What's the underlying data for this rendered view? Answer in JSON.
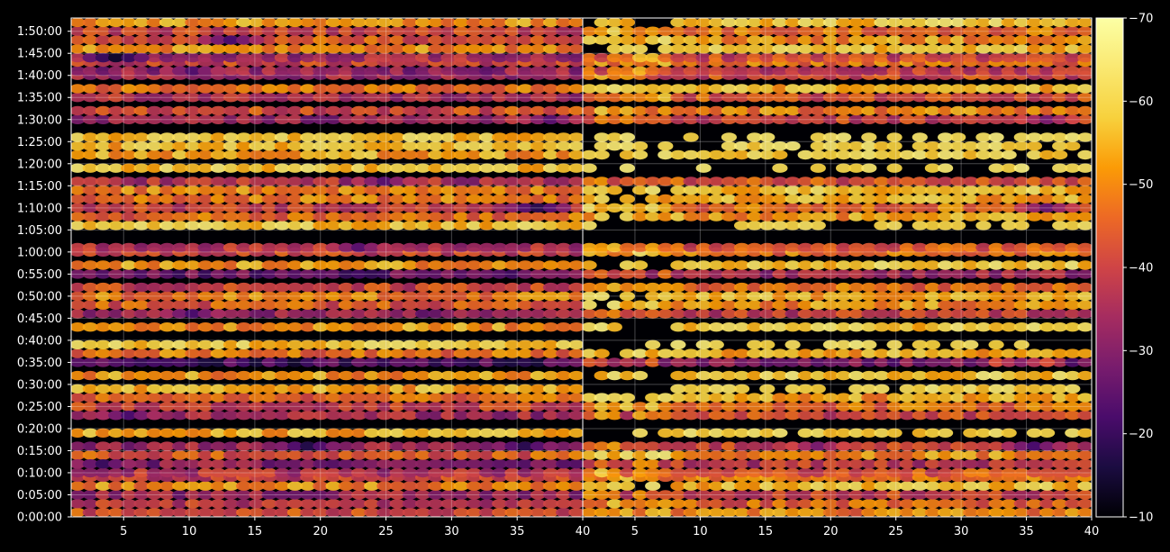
{
  "chart_data": {
    "type": "heatmap",
    "colormap": "inferno",
    "background": "#000000",
    "grid": true,
    "panels": [
      {
        "name": "left",
        "x_range": [
          1,
          40
        ],
        "x_ticks": [
          5,
          10,
          15,
          20,
          25,
          30,
          35,
          40
        ],
        "x_tick_labels": [
          "5",
          "10",
          "15",
          "20",
          "25",
          "30",
          "35",
          "40"
        ]
      },
      {
        "name": "right",
        "x_range": [
          1,
          40
        ],
        "x_ticks": [
          5,
          10,
          15,
          20,
          25,
          30,
          35,
          40
        ],
        "x_tick_labels": [
          "5",
          "10",
          "15",
          "20",
          "25",
          "30",
          "35",
          "40"
        ]
      }
    ],
    "y_axis": {
      "unit": "h:mm:ss",
      "range_minutes": [
        0,
        113
      ],
      "ticks_minutes": [
        0,
        5,
        10,
        15,
        20,
        25,
        30,
        35,
        40,
        45,
        50,
        55,
        60,
        65,
        70,
        75,
        80,
        85,
        90,
        95,
        100,
        105,
        110
      ],
      "tick_labels": [
        "0:00:00",
        "0:05:00",
        "0:10:00",
        "0:15:00",
        "0:20:00",
        "0:25:00",
        "0:30:00",
        "0:35:00",
        "0:40:00",
        "0:45:00",
        "0:50:00",
        "0:55:00",
        "1:00:00",
        "1:05:00",
        "1:10:00",
        "1:15:00",
        "1:20:00",
        "1:25:00",
        "1:30:00",
        "1:35:00",
        "1:40:00",
        "1:45:00",
        "1:50:00"
      ]
    },
    "colorbar": {
      "range": [
        -70,
        -10
      ],
      "ticks": [
        -10,
        -20,
        -30,
        -40,
        -50,
        -60,
        -70
      ],
      "tick_labels": [
        "−10",
        "−20",
        "−30",
        "−40",
        "−50",
        "−60",
        "−70"
      ]
    },
    "band_rows": [
      {
        "t": 1,
        "v": -42
      },
      {
        "t": 3,
        "v": -38
      },
      {
        "t": 5,
        "v": -33
      },
      {
        "t": 7,
        "v": -50
      },
      {
        "t": 9,
        "v": -40
      },
      {
        "t": 10,
        "v": -36
      },
      {
        "t": 12,
        "v": -31
      },
      {
        "t": 14,
        "v": -44
      },
      {
        "t": 16,
        "v": -33
      },
      {
        "t": 19,
        "v": -55
      },
      {
        "t": 23,
        "v": -34
      },
      {
        "t": 25,
        "v": -40
      },
      {
        "t": 27,
        "v": -46
      },
      {
        "t": 29,
        "v": -55
      },
      {
        "t": 32,
        "v": -52
      },
      {
        "t": 35,
        "v": -22
      },
      {
        "t": 37,
        "v": -48
      },
      {
        "t": 39,
        "v": -58
      },
      {
        "t": 43,
        "v": -52
      },
      {
        "t": 46,
        "v": -32
      },
      {
        "t": 48,
        "v": -44
      },
      {
        "t": 50,
        "v": -48
      },
      {
        "t": 52,
        "v": -40
      },
      {
        "t": 55,
        "v": -26
      },
      {
        "t": 57,
        "v": -52
      },
      {
        "t": 60,
        "v": -40
      },
      {
        "t": 61,
        "v": -36
      },
      {
        "t": 66,
        "v": -58
      },
      {
        "t": 68,
        "v": -46
      },
      {
        "t": 70,
        "v": -40
      },
      {
        "t": 72,
        "v": -48
      },
      {
        "t": 74,
        "v": -50
      },
      {
        "t": 76,
        "v": -36
      },
      {
        "t": 79,
        "v": -58
      },
      {
        "t": 82,
        "v": -54
      },
      {
        "t": 84,
        "v": -56
      },
      {
        "t": 86,
        "v": -58
      },
      {
        "t": 90,
        "v": -33
      },
      {
        "t": 92,
        "v": -42
      },
      {
        "t": 95,
        "v": -36
      },
      {
        "t": 97,
        "v": -48
      },
      {
        "t": 100,
        "v": -34
      },
      {
        "t": 101,
        "v": -32
      },
      {
        "t": 103,
        "v": -40
      },
      {
        "t": 104,
        "v": -34
      },
      {
        "t": 106,
        "v": -50
      },
      {
        "t": 108,
        "v": -44
      },
      {
        "t": 110,
        "v": -40
      },
      {
        "t": 112,
        "v": -52
      }
    ],
    "hotspots": [
      {
        "panel": "left",
        "x": 4,
        "t": 104,
        "v": -14
      },
      {
        "panel": "left",
        "x": 15,
        "t": 35,
        "v": -15
      },
      {
        "panel": "left",
        "x": 18,
        "t": 35,
        "v": -14
      },
      {
        "panel": "left",
        "x": 19,
        "t": 16,
        "v": -17
      },
      {
        "panel": "left",
        "x": 10,
        "t": 46,
        "v": -22
      },
      {
        "panel": "left",
        "x": 23,
        "t": 61,
        "v": -24
      },
      {
        "panel": "left",
        "x": 37,
        "t": 70,
        "v": -18
      },
      {
        "panel": "left",
        "x": 36,
        "t": 16,
        "v": -18
      },
      {
        "panel": "left",
        "x": 3,
        "t": 12,
        "v": -20
      },
      {
        "panel": "left",
        "x": 5,
        "t": 23,
        "v": -22
      },
      {
        "panel": "left",
        "x": 38,
        "t": 90,
        "v": -24
      },
      {
        "panel": "left",
        "x": 10,
        "t": 101,
        "v": -23
      },
      {
        "panel": "left",
        "x": 25,
        "t": 76,
        "v": -24
      },
      {
        "panel": "left",
        "x": 13,
        "t": 108,
        "v": -22
      },
      {
        "panel": "right",
        "x": 19,
        "t": 16,
        "v": -28
      },
      {
        "panel": "right",
        "x": 36,
        "t": 16,
        "v": -22
      },
      {
        "panel": "right",
        "x": 37,
        "t": 70,
        "v": -26
      },
      {
        "panel": "right",
        "x": 37,
        "t": 90,
        "v": -28
      },
      {
        "panel": "right",
        "x": 35,
        "t": 35,
        "v": -30
      }
    ]
  }
}
